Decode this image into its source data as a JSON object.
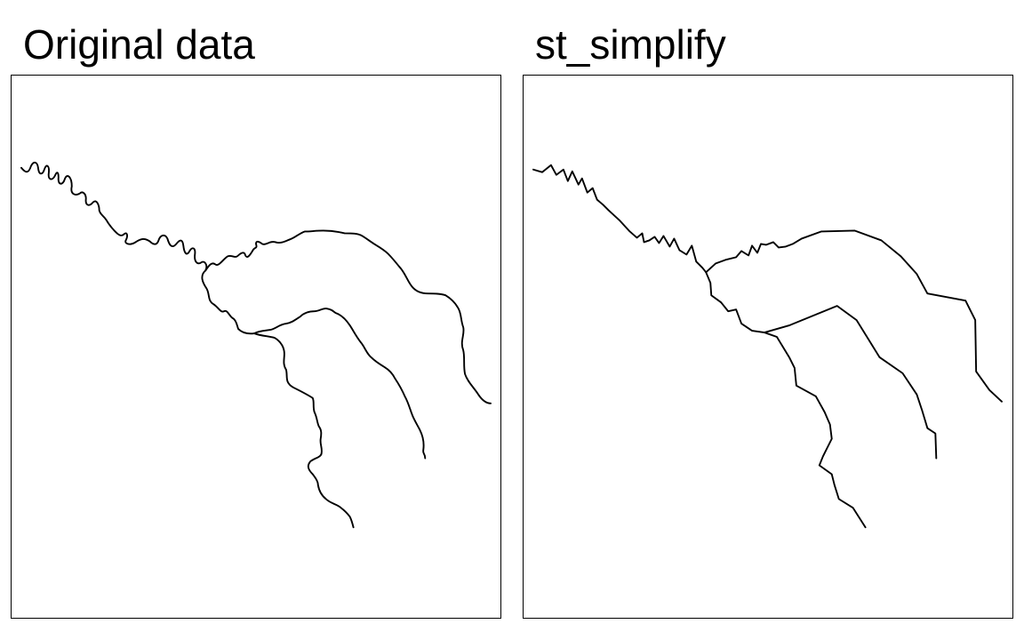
{
  "panels": [
    {
      "title": "Original data"
    },
    {
      "title": "st_simplify"
    }
  ],
  "colors": {
    "background": "#ffffff",
    "line": "#000000",
    "frame": "#000000"
  }
}
